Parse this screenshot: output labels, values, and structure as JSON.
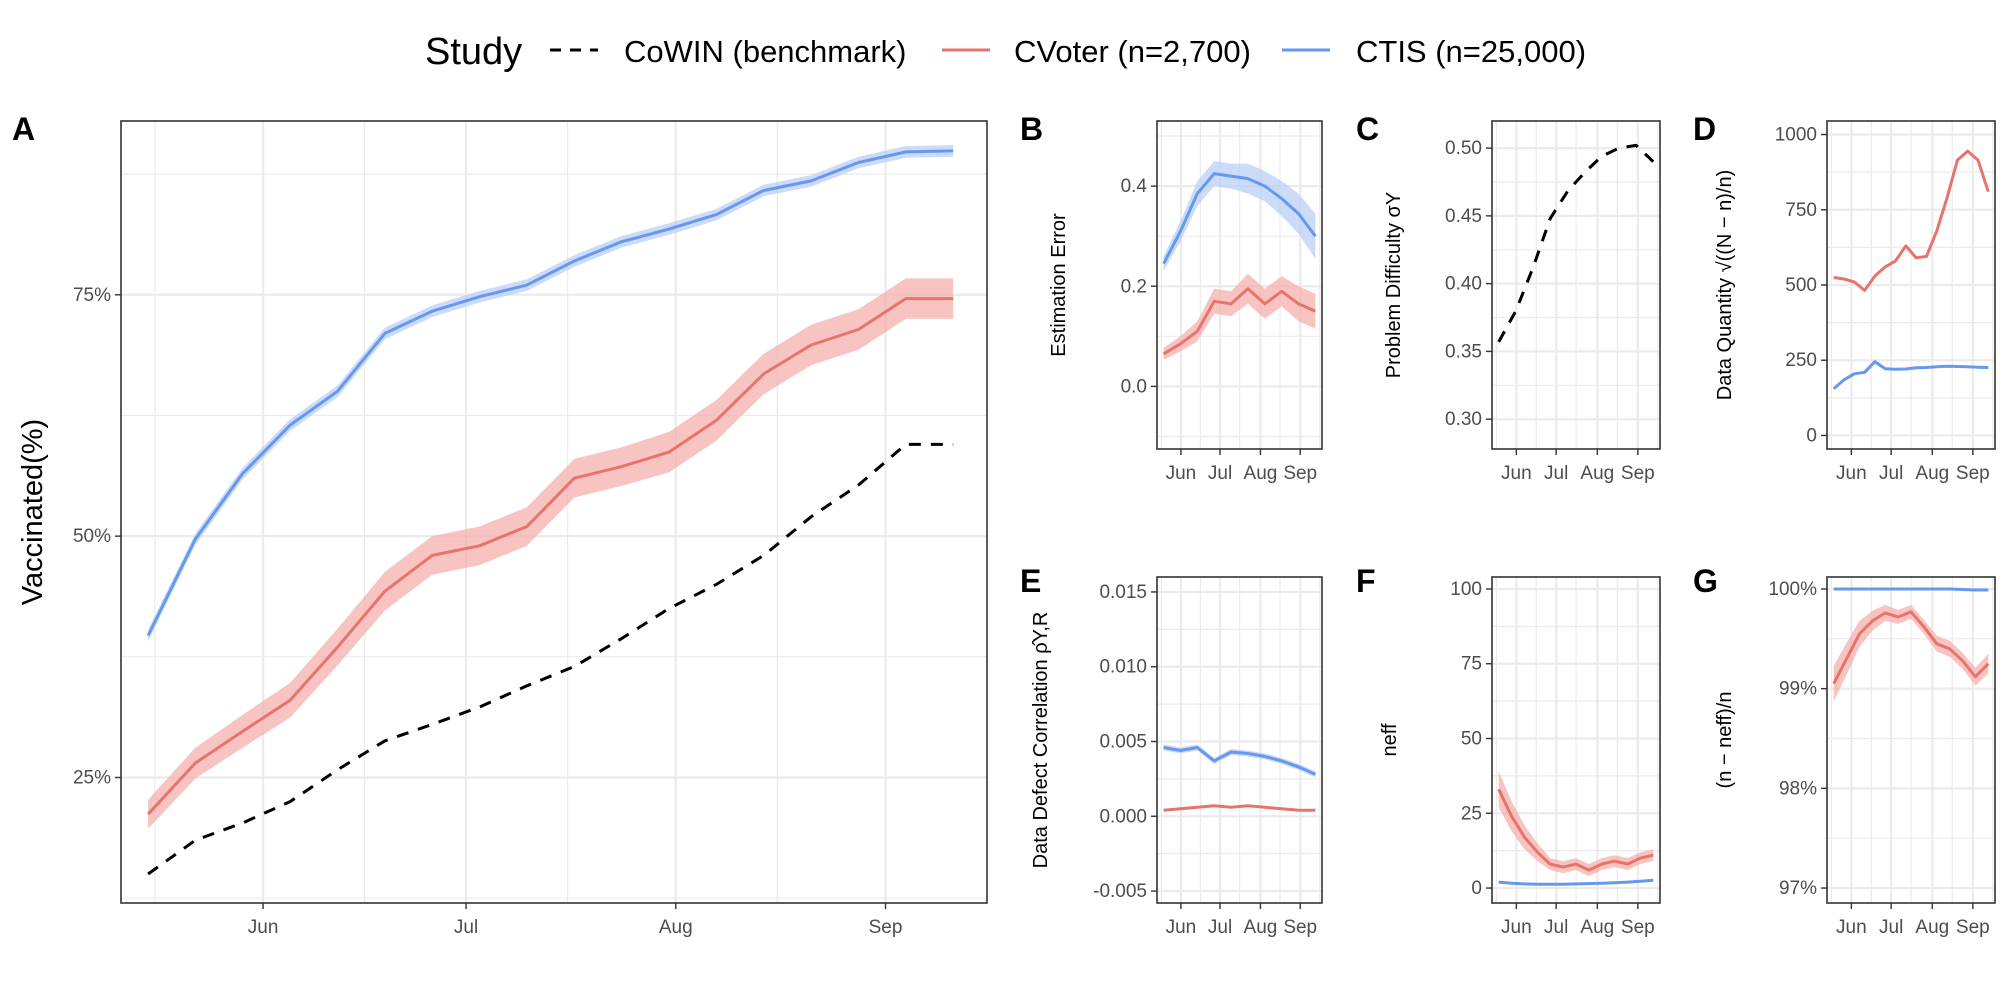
{
  "legend": {
    "title": "Study",
    "entries": [
      {
        "label": "CoWIN (benchmark)",
        "color": "#000000",
        "dash": true
      },
      {
        "label": "CVoter (n=2,700)",
        "color": "#E8736C",
        "dash": false
      },
      {
        "label": "CTIS (n=25,000)",
        "color": "#6699EE",
        "dash": false
      }
    ]
  },
  "colors": {
    "cvoter": "#E8736C",
    "cvoter_band": "#F4B0AC",
    "ctis": "#6699EE",
    "ctis_band": "#B9CFF5",
    "cowin": "#000000",
    "grid": "#EBEBEB",
    "frame": "#333333"
  },
  "chart_data": [
    {
      "panel": "A",
      "type": "line",
      "ylabel": "Vaccinated(%)",
      "x_ticks": [
        "Jun",
        "Jul",
        "Aug",
        "Sep"
      ],
      "y_ticks": [
        "25%",
        "50%",
        "75%"
      ],
      "y_tick_values": [
        25,
        50,
        75
      ],
      "xlim": [
        "2021-05-11",
        "2021-09-16"
      ],
      "ylim": [
        12,
        93
      ],
      "series": [
        {
          "name": "CTIS (n=25,000)",
          "x": [
            "2021-05-15",
            "2021-05-22",
            "2021-05-29",
            "2021-06-05",
            "2021-06-12",
            "2021-06-19",
            "2021-06-26",
            "2021-07-03",
            "2021-07-10",
            "2021-07-17",
            "2021-07-24",
            "2021-07-31",
            "2021-08-07",
            "2021-08-14",
            "2021-08-21",
            "2021-08-28",
            "2021-09-04",
            "2021-09-11"
          ],
          "y": [
            39.7,
            49.7,
            56.5,
            61.5,
            65.0,
            71.0,
            73.3,
            74.8,
            76.0,
            78.5,
            80.5,
            81.8,
            83.3,
            85.8,
            86.8,
            88.7,
            89.8,
            89.9
          ],
          "band": [
            0.6,
            0.6,
            0.6,
            0.6,
            0.6,
            0.6,
            0.6,
            0.6,
            0.6,
            0.6,
            0.6,
            0.6,
            0.6,
            0.6,
            0.6,
            0.6,
            0.6,
            0.6
          ]
        },
        {
          "name": "CVoter (n=2,700)",
          "x": [
            "2021-05-15",
            "2021-05-22",
            "2021-05-29",
            "2021-06-05",
            "2021-06-12",
            "2021-06-19",
            "2021-06-26",
            "2021-07-03",
            "2021-07-10",
            "2021-07-17",
            "2021-07-24",
            "2021-07-31",
            "2021-08-07",
            "2021-08-14",
            "2021-08-21",
            "2021-08-28",
            "2021-09-04",
            "2021-09-11"
          ],
          "y": [
            21.2,
            26.5,
            29.8,
            33.0,
            38.5,
            44.3,
            48.0,
            49.0,
            51.0,
            56.0,
            57.2,
            58.7,
            62.0,
            66.8,
            69.8,
            71.4,
            74.6,
            74.6
          ],
          "band": [
            1.5,
            1.6,
            1.7,
            1.8,
            1.9,
            2.0,
            2.0,
            2.0,
            2.0,
            2.0,
            2.0,
            2.1,
            2.1,
            2.1,
            2.1,
            2.1,
            2.1,
            2.1
          ]
        },
        {
          "name": "CoWIN (benchmark)",
          "dashed": true,
          "x": [
            "2021-05-15",
            "2021-05-22",
            "2021-05-29",
            "2021-06-05",
            "2021-06-12",
            "2021-06-19",
            "2021-06-26",
            "2021-07-03",
            "2021-07-10",
            "2021-07-17",
            "2021-07-24",
            "2021-07-31",
            "2021-08-07",
            "2021-08-14",
            "2021-08-21",
            "2021-08-28",
            "2021-09-04",
            "2021-09-11"
          ],
          "y": [
            15.0,
            18.5,
            20.3,
            22.5,
            25.8,
            28.8,
            30.5,
            32.3,
            34.5,
            36.5,
            39.4,
            42.5,
            45.0,
            48.0,
            52.0,
            55.3,
            59.5,
            59.5
          ]
        }
      ]
    },
    {
      "panel": "B",
      "type": "line",
      "ylabel": "Estimation Error",
      "x_ticks": [
        "Jun",
        "Jul",
        "Aug",
        "Sep"
      ],
      "y_ticks": [
        "0.0",
        "0.2",
        "0.4"
      ],
      "y_tick_values": [
        0,
        0.2,
        0.4
      ],
      "ylim": [
        -0.125,
        0.53
      ],
      "series": [
        {
          "name": "CTIS (n=25,000)",
          "y": [
            0.245,
            0.31,
            0.385,
            0.425,
            0.42,
            0.415,
            0.4,
            0.375,
            0.345,
            0.3
          ],
          "band": [
            0.015,
            0.02,
            0.025,
            0.025,
            0.025,
            0.03,
            0.03,
            0.035,
            0.04,
            0.045
          ]
        },
        {
          "name": "CVoter (n=2,700)",
          "y": [
            0.065,
            0.085,
            0.11,
            0.17,
            0.165,
            0.195,
            0.165,
            0.19,
            0.165,
            0.15
          ],
          "band": [
            0.012,
            0.015,
            0.02,
            0.025,
            0.025,
            0.03,
            0.03,
            0.03,
            0.035,
            0.035
          ]
        }
      ]
    },
    {
      "panel": "C",
      "type": "line",
      "ylabel": "Problem Difficulty σY",
      "x_ticks": [
        "Jun",
        "Jul",
        "Aug",
        "Sep"
      ],
      "y_ticks": [
        "0.30",
        "0.35",
        "0.40",
        "0.45",
        "0.50"
      ],
      "y_tick_values": [
        0.3,
        0.35,
        0.4,
        0.45,
        0.5
      ],
      "ylim": [
        0.278,
        0.52
      ],
      "series": [
        {
          "name": "CoWIN (benchmark)",
          "dashed": true,
          "y": [
            0.357,
            0.38,
            0.412,
            0.448,
            0.468,
            0.482,
            0.494,
            0.5,
            0.502,
            0.49
          ]
        }
      ]
    },
    {
      "panel": "D",
      "type": "line",
      "ylabel": "Data Quantity √((N − n)/n)",
      "x_ticks": [
        "Jun",
        "Jul",
        "Aug",
        "Sep"
      ],
      "y_ticks": [
        "0",
        "250",
        "500",
        "750",
        "1000"
      ],
      "y_tick_values": [
        0,
        250,
        500,
        750,
        1000
      ],
      "ylim": [
        -45,
        1045
      ],
      "series": [
        {
          "name": "CVoter (n=2,700)",
          "y": [
            525,
            520,
            510,
            482,
            530,
            560,
            580,
            630,
            590,
            595,
            680,
            790,
            915,
            945,
            915,
            810
          ]
        },
        {
          "name": "CTIS (n=25,000)",
          "y": [
            155,
            185,
            205,
            210,
            245,
            222,
            220,
            221,
            225,
            226,
            228,
            230,
            229,
            228,
            227,
            226
          ]
        }
      ]
    },
    {
      "panel": "E",
      "type": "line",
      "ylabel": "Data Defect Correlation ρ̂Y,R",
      "x_ticks": [
        "Jun",
        "Jul",
        "Aug",
        "Sep"
      ],
      "y_ticks": [
        "-0.005",
        "0.000",
        "0.005",
        "0.010",
        "0.015"
      ],
      "y_tick_values": [
        -0.005,
        0,
        0.005,
        0.01,
        0.015
      ],
      "ylim": [
        -0.0058,
        0.016
      ],
      "series": [
        {
          "name": "CTIS (n=25,000)",
          "y": [
            0.0046,
            0.0044,
            0.0046,
            0.0037,
            0.0043,
            0.0042,
            0.004,
            0.0037,
            0.0033,
            0.0028
          ],
          "band": [
            0.0002,
            0.0002,
            0.0002,
            0.0002,
            0.0002,
            0.0002,
            0.0002,
            0.0002,
            0.0002,
            0.0002
          ]
        },
        {
          "name": "CVoter (n=2,700)",
          "y": [
            0.0004,
            0.0005,
            0.0006,
            0.0007,
            0.0006,
            0.0007,
            0.0006,
            0.0005,
            0.0004,
            0.0004
          ]
        }
      ]
    },
    {
      "panel": "F",
      "type": "line",
      "ylabel": "neff",
      "x_ticks": [
        "Jun",
        "Jul",
        "Aug",
        "Sep"
      ],
      "y_ticks": [
        "0",
        "25",
        "50",
        "75",
        "100"
      ],
      "y_tick_values": [
        0,
        25,
        50,
        75,
        100
      ],
      "ylim": [
        -5,
        104
      ],
      "series": [
        {
          "name": "CVoter (n=2,700)",
          "y": [
            33,
            24,
            17,
            12,
            8,
            7,
            8,
            6,
            8,
            9,
            8,
            10,
            11
          ],
          "band": [
            6,
            5,
            4,
            3,
            2,
            2,
            2,
            2,
            2,
            2,
            2,
            2,
            2
          ]
        },
        {
          "name": "CTIS (n=25,000)",
          "y": [
            2,
            1.6,
            1.4,
            1.3,
            1.3,
            1.3,
            1.4,
            1.5,
            1.6,
            1.8,
            2.0,
            2.3,
            2.6
          ]
        }
      ]
    },
    {
      "panel": "G",
      "type": "line",
      "ylabel": "(n − neff)/n",
      "x_ticks": [
        "Jun",
        "Jul",
        "Aug",
        "Sep"
      ],
      "y_ticks": [
        "97%",
        "98%",
        "99%",
        "100%"
      ],
      "y_tick_values": [
        97,
        98,
        99,
        100
      ],
      "ylim": [
        96.85,
        100.12
      ],
      "series": [
        {
          "name": "CTIS (n=25,000)",
          "y": [
            100,
            100,
            100,
            100,
            100,
            100,
            100,
            100,
            100,
            100,
            99.995,
            99.99,
            99.99
          ]
        },
        {
          "name": "CVoter (n=2,700)",
          "y": [
            99.05,
            99.3,
            99.55,
            99.68,
            99.76,
            99.72,
            99.77,
            99.62,
            99.45,
            99.4,
            99.28,
            99.12,
            99.25
          ],
          "band": [
            0.18,
            0.16,
            0.13,
            0.1,
            0.08,
            0.07,
            0.07,
            0.07,
            0.08,
            0.08,
            0.08,
            0.09,
            0.1
          ]
        }
      ]
    }
  ]
}
